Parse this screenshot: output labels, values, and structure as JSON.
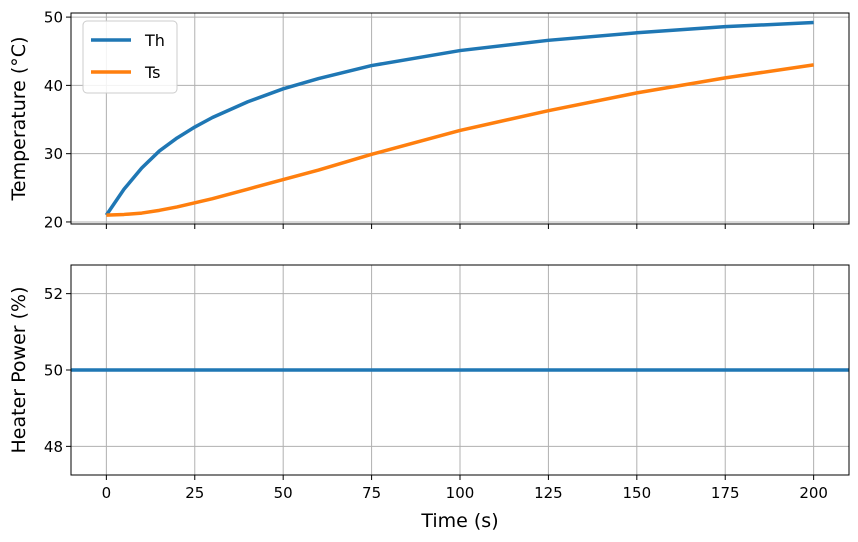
{
  "chart_data": [
    {
      "type": "line",
      "xlabel": "",
      "ylabel": "Temperature (°C)",
      "xlim": [
        -10,
        210
      ],
      "ylim": [
        19.7,
        50.6
      ],
      "xticks": [
        0,
        25,
        50,
        75,
        100,
        125,
        150,
        175,
        200
      ],
      "yticks": [
        20,
        30,
        40,
        50
      ],
      "grid": true,
      "legend_position": "top-left",
      "x": [
        0,
        5,
        10,
        15,
        20,
        25,
        30,
        40,
        50,
        60,
        75,
        100,
        125,
        150,
        175,
        200
      ],
      "series": [
        {
          "name": "Th",
          "color": "#1f77b4",
          "values": [
            21.0,
            24.8,
            27.9,
            30.4,
            32.3,
            33.9,
            35.3,
            37.6,
            39.5,
            41.0,
            42.9,
            45.1,
            46.6,
            47.7,
            48.6,
            49.2
          ]
        },
        {
          "name": "Ts",
          "color": "#ff7f0e",
          "values": [
            21.0,
            21.1,
            21.3,
            21.7,
            22.2,
            22.8,
            23.4,
            24.8,
            26.2,
            27.6,
            29.9,
            33.4,
            36.3,
            38.9,
            41.1,
            43.0
          ]
        }
      ]
    },
    {
      "type": "line",
      "xlabel": "Time (s)",
      "ylabel": "Heater Power (%)",
      "xlim": [
        -10,
        210
      ],
      "ylim": [
        47.25,
        52.75
      ],
      "xticks": [
        0,
        25,
        50,
        75,
        100,
        125,
        150,
        175,
        200
      ],
      "yticks": [
        48,
        50,
        52
      ],
      "grid": true,
      "x": [
        -10,
        210
      ],
      "series": [
        {
          "color": "#1f77b4",
          "values": [
            50,
            50
          ]
        }
      ]
    }
  ]
}
